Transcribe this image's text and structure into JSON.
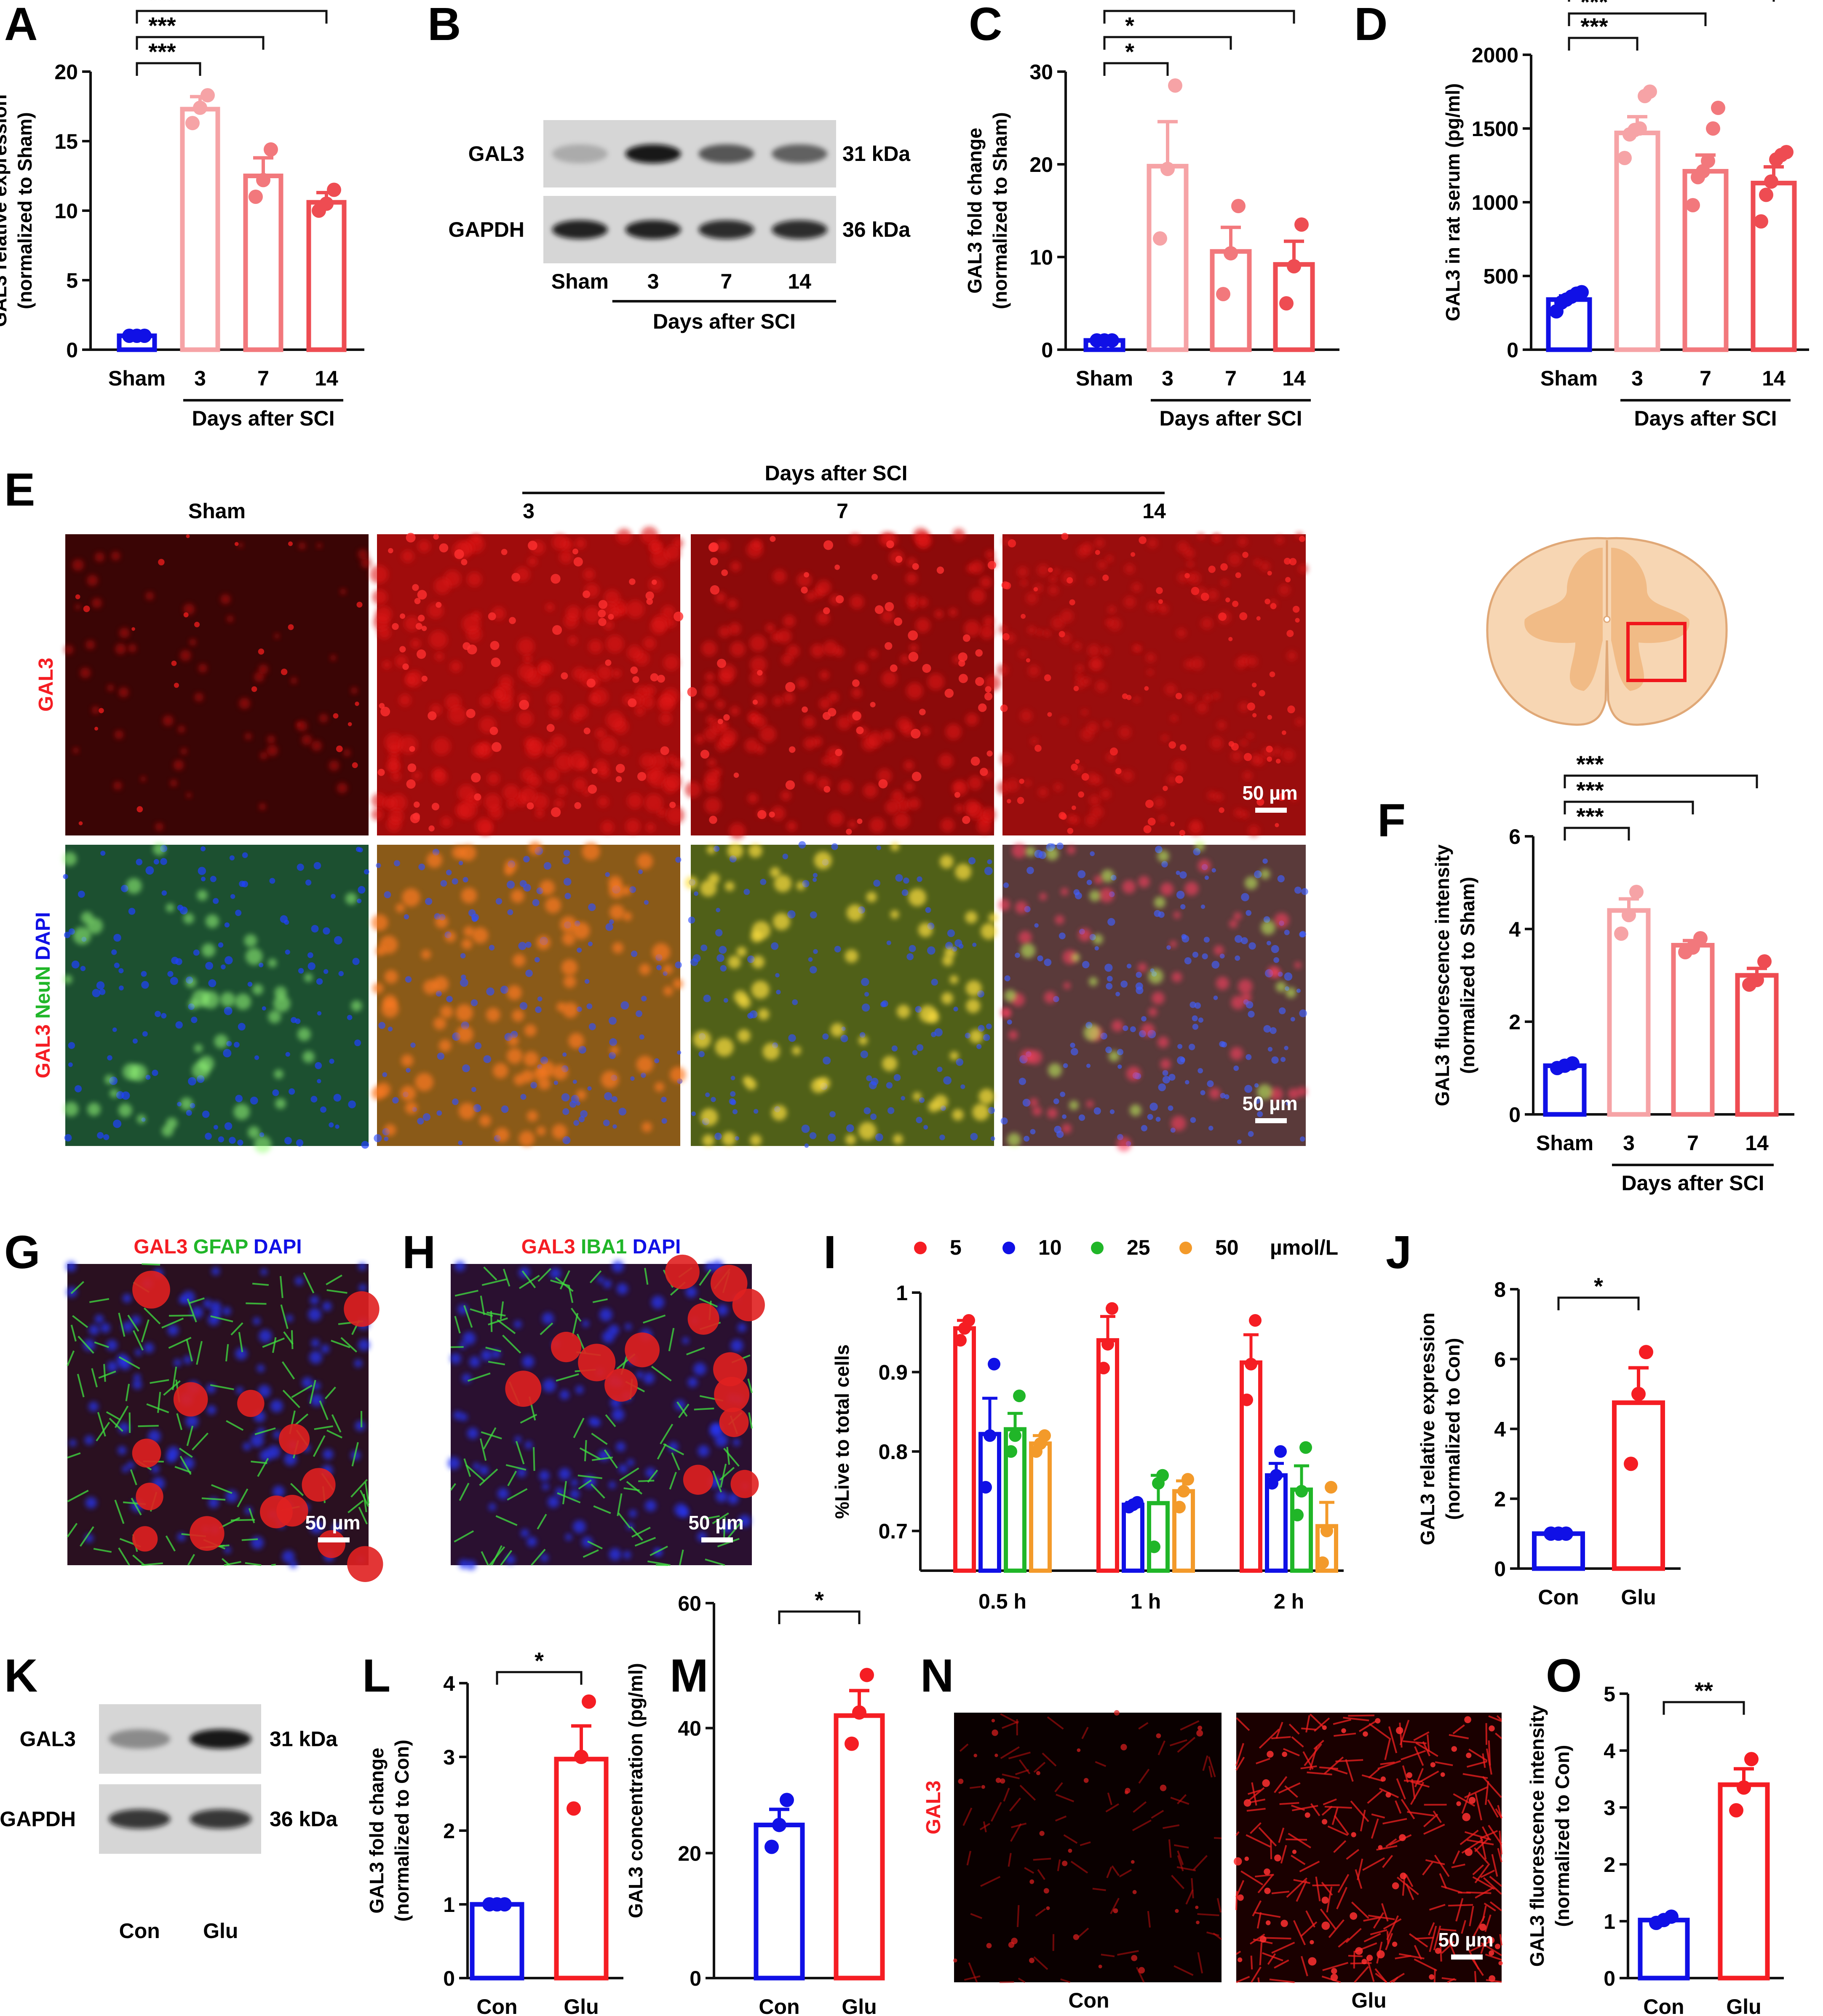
{
  "colors": {
    "blue": "#1010e6",
    "red": "#f51d23",
    "pink1": "#f6a3a6",
    "pink2": "#f2787c",
    "pink3": "#ee4c52",
    "green": "#20b628",
    "orange": "#f39a2a",
    "black": "#111111"
  },
  "panel_letters": {
    "A": "A",
    "B": "B",
    "C": "C",
    "D": "D",
    "E": "E",
    "F": "F",
    "G": "G",
    "H": "H",
    "I": "I",
    "J": "J",
    "K": "K",
    "L": "L",
    "M": "M",
    "N": "N",
    "O": "O"
  },
  "common": {
    "days_after_sci": "Days after SCI",
    "scale_bar": "50 µm"
  },
  "blots": {
    "B": {
      "rows": [
        "GAL3",
        "GAPDH"
      ],
      "sizes": [
        "31 kDa",
        "36 kDa"
      ],
      "lanes": [
        "Sham",
        "3",
        "7",
        "14"
      ],
      "group_label": "Days after SCI",
      "band_intensity": [
        [
          0.2,
          0.95,
          0.6,
          0.55
        ],
        [
          0.9,
          0.9,
          0.85,
          0.85
        ]
      ]
    },
    "K": {
      "rows": [
        "GAL3",
        "GAPDH"
      ],
      "sizes": [
        "31 kDa",
        "36 kDa"
      ],
      "lanes": [
        "Con",
        "Glu"
      ],
      "band_intensity": [
        [
          0.35,
          0.95
        ],
        [
          0.8,
          0.8
        ]
      ]
    }
  },
  "micrographs": {
    "E": {
      "columns": [
        "Sham",
        "3",
        "7",
        "14"
      ],
      "group_label": "Days after SCI",
      "row_labels": {
        "top": [
          {
            "t": "GAL3",
            "c": "red"
          }
        ],
        "bottom": [
          {
            "t": "GAL3",
            "c": "red"
          },
          {
            "t": " NeuN",
            "c": "green"
          },
          {
            "t": " DAPI",
            "c": "blue"
          }
        ]
      }
    },
    "G": {
      "title": [
        {
          "t": "GAL3",
          "c": "red"
        },
        {
          "t": " GFAP",
          "c": "green"
        },
        {
          "t": " DAPI",
          "c": "blue"
        }
      ]
    },
    "H": {
      "title": [
        {
          "t": "GAL3",
          "c": "red"
        },
        {
          "t": " IBA1",
          "c": "green"
        },
        {
          "t": " DAPI",
          "c": "blue"
        }
      ]
    },
    "N": {
      "row_label": "GAL3",
      "columns": [
        "Con",
        "Glu"
      ]
    }
  },
  "chart_data": [
    {
      "panel": "A",
      "type": "bar",
      "ylabel": [
        "GAL3 relative  expression",
        "(normalized to Sham)"
      ],
      "ylim": [
        0,
        20
      ],
      "yticks": [
        0,
        5,
        10,
        15,
        20
      ],
      "categories": [
        "Sham",
        "3",
        "7",
        "14"
      ],
      "group_label": "Days after SCI",
      "values": [
        1.0,
        17.3,
        12.5,
        10.6
      ],
      "sem": [
        0.05,
        0.9,
        1.3,
        0.7
      ],
      "points": [
        [
          1.0,
          1.0,
          1.0
        ],
        [
          16.3,
          17.4,
          18.3
        ],
        [
          11.0,
          12.2,
          14.4
        ],
        [
          10.0,
          10.5,
          11.5
        ]
      ],
      "colors": [
        "blue",
        "pink1",
        "pink2",
        "pink3"
      ],
      "significance": [
        {
          "from": 0,
          "to": 1,
          "label": "***"
        },
        {
          "from": 0,
          "to": 2,
          "label": "***"
        },
        {
          "from": 0,
          "to": 3,
          "label": "***"
        }
      ]
    },
    {
      "panel": "C",
      "type": "bar",
      "ylabel": [
        "GAL3 fold change",
        "(normalized to Sham)"
      ],
      "ylim": [
        0,
        30
      ],
      "yticks": [
        0,
        10,
        20,
        30
      ],
      "categories": [
        "Sham",
        "3",
        "7",
        "14"
      ],
      "group_label": "Days after SCI",
      "values": [
        1.0,
        19.8,
        10.6,
        9.2
      ],
      "sem": [
        0.05,
        4.8,
        2.6,
        2.5
      ],
      "points": [
        [
          1.0,
          1.0,
          1.0
        ],
        [
          12.0,
          19.5,
          28.5
        ],
        [
          6.0,
          10.4,
          15.5
        ],
        [
          5.0,
          9.0,
          13.5
        ]
      ],
      "colors": [
        "blue",
        "pink1",
        "pink2",
        "pink3"
      ],
      "significance": [
        {
          "from": 0,
          "to": 1,
          "label": "*"
        },
        {
          "from": 0,
          "to": 2,
          "label": "*"
        },
        {
          "from": 0,
          "to": 3,
          "label": "*"
        }
      ]
    },
    {
      "panel": "D",
      "type": "bar",
      "ylabel": [
        "GAL3 in rat serum (pg/ml)"
      ],
      "ylim": [
        0,
        2000
      ],
      "yticks": [
        0,
        500,
        1000,
        1500,
        2000
      ],
      "categories": [
        "Sham",
        "3",
        "7",
        "14"
      ],
      "group_label": "Days after SCI",
      "values": [
        340,
        1470,
        1210,
        1130
      ],
      "sem": [
        25,
        110,
        110,
        110
      ],
      "points": [
        [
          260,
          320,
          340,
          360,
          380,
          390
        ],
        [
          1300,
          1460,
          1490,
          1500,
          1720,
          1750
        ],
        [
          980,
          1170,
          1210,
          1280,
          1500,
          1640
        ],
        [
          870,
          1050,
          1140,
          1290,
          1320,
          1340
        ]
      ],
      "colors": [
        "blue",
        "pink1",
        "pink2",
        "pink3"
      ],
      "significance": [
        {
          "from": 0,
          "to": 1,
          "label": "***"
        },
        {
          "from": 0,
          "to": 2,
          "label": "***"
        },
        {
          "from": 0,
          "to": 3,
          "label": "***"
        }
      ]
    },
    {
      "panel": "F",
      "type": "bar",
      "ylabel": [
        "GAL3 fluorescence intensity",
        "(normalized to Sham)"
      ],
      "ylim": [
        0,
        6
      ],
      "yticks": [
        0,
        2,
        4,
        6
      ],
      "categories": [
        "Sham",
        "3",
        "7",
        "14"
      ],
      "group_label": "Days after SCI",
      "values": [
        1.05,
        4.4,
        3.65,
        3.0
      ],
      "sem": [
        0.04,
        0.25,
        0.1,
        0.15
      ],
      "points": [
        [
          1.0,
          1.05,
          1.1
        ],
        [
          3.9,
          4.3,
          4.8
        ],
        [
          3.5,
          3.6,
          3.8
        ],
        [
          2.8,
          2.9,
          3.3
        ]
      ],
      "colors": [
        "blue",
        "pink1",
        "pink2",
        "pink3"
      ],
      "significance": [
        {
          "from": 0,
          "to": 1,
          "label": "***"
        },
        {
          "from": 0,
          "to": 2,
          "label": "***"
        },
        {
          "from": 0,
          "to": 3,
          "label": "***"
        }
      ]
    },
    {
      "panel": "I",
      "type": "bar",
      "ylabel": [
        "%Live to total  cells"
      ],
      "ylim": [
        0.65,
        1.0
      ],
      "yticks": [
        0.7,
        0.8,
        0.9,
        1.0
      ],
      "categories": [
        "0.5 h",
        "1 h",
        "2 h"
      ],
      "legend": {
        "unit": "µmol/L",
        "placement": "top"
      },
      "series": [
        {
          "name": "5",
          "color": "red",
          "values": [
            0.955,
            0.94,
            0.912
          ],
          "sem": [
            0.01,
            0.03,
            0.035
          ],
          "points": [
            [
              0.94,
              0.955,
              0.965
            ],
            [
              0.905,
              0.935,
              0.98
            ],
            [
              0.865,
              0.91,
              0.965
            ]
          ]
        },
        {
          "name": "10",
          "color": "blue",
          "values": [
            0.822,
            0.733,
            0.77
          ],
          "sem": [
            0.045,
            0.003,
            0.015
          ],
          "points": [
            [
              0.755,
              0.82,
              0.91
            ],
            [
              0.73,
              0.733,
              0.736
            ],
            [
              0.76,
              0.77,
              0.8
            ]
          ]
        },
        {
          "name": "25",
          "color": "green",
          "values": [
            0.828,
            0.735,
            0.752
          ],
          "sem": [
            0.02,
            0.035,
            0.03
          ],
          "points": [
            [
              0.8,
              0.82,
              0.87
            ],
            [
              0.68,
              0.76,
              0.77
            ],
            [
              0.72,
              0.75,
              0.805
            ]
          ]
        },
        {
          "name": "50",
          "color": "orange",
          "values": [
            0.81,
            0.75,
            0.706
          ],
          "sem": [
            0.01,
            0.013,
            0.03
          ],
          "points": [
            [
              0.8,
              0.81,
              0.82
            ],
            [
              0.73,
              0.75,
              0.765
            ],
            [
              0.66,
              0.7,
              0.755
            ]
          ]
        }
      ]
    },
    {
      "panel": "J",
      "type": "bar",
      "ylabel": [
        "GAL3 relative  expression",
        "(normalized to Con)"
      ],
      "ylim": [
        0,
        8
      ],
      "yticks": [
        0,
        2,
        4,
        6,
        8
      ],
      "categories": [
        "Con",
        "Glu"
      ],
      "values": [
        1.0,
        4.75
      ],
      "sem": [
        0.03,
        1.0
      ],
      "points": [
        [
          1.0,
          1.0,
          1.0
        ],
        [
          3.0,
          5.0,
          6.2
        ]
      ],
      "colors": [
        "blue",
        "red"
      ],
      "significance": [
        {
          "from": 0,
          "to": 1,
          "label": "*"
        }
      ]
    },
    {
      "panel": "L",
      "type": "bar",
      "ylabel": [
        "GAL3 fold change",
        "(normalized to Con)"
      ],
      "ylim": [
        0,
        4
      ],
      "yticks": [
        0,
        1,
        2,
        3,
        4
      ],
      "categories": [
        "Con",
        "Glu"
      ],
      "values": [
        1.0,
        2.97
      ],
      "sem": [
        0.02,
        0.45
      ],
      "points": [
        [
          1.0,
          1.0,
          1.0
        ],
        [
          2.3,
          3.0,
          3.75
        ]
      ],
      "colors": [
        "blue",
        "red"
      ],
      "significance": [
        {
          "from": 0,
          "to": 1,
          "label": "*"
        }
      ]
    },
    {
      "panel": "M",
      "type": "bar",
      "ylabel": [
        "GAL3 concentration (pg/ml)"
      ],
      "ylim": [
        0,
        60
      ],
      "yticks": [
        0,
        20,
        40,
        60
      ],
      "categories": [
        "Con",
        "Glu"
      ],
      "values": [
        24.5,
        42.0
      ],
      "sem": [
        2.5,
        4.0
      ],
      "points": [
        [
          21.0,
          24.5,
          28.5
        ],
        [
          37.5,
          42.5,
          48.5
        ]
      ],
      "colors": [
        "blue",
        "red"
      ],
      "significance": [
        {
          "from": 0,
          "to": 1,
          "label": "*"
        }
      ]
    },
    {
      "panel": "O",
      "type": "bar",
      "ylabel": [
        "GAL3 fluorescence intensity",
        "(normalized to Con)"
      ],
      "ylim": [
        0,
        5
      ],
      "yticks": [
        0,
        1,
        2,
        3,
        4,
        5
      ],
      "categories": [
        "Con",
        "Glu"
      ],
      "values": [
        1.02,
        3.4
      ],
      "sem": [
        0.03,
        0.28
      ],
      "points": [
        [
          0.97,
          1.02,
          1.08
        ],
        [
          2.95,
          3.35,
          3.85
        ]
      ],
      "colors": [
        "blue",
        "red"
      ],
      "significance": [
        {
          "from": 0,
          "to": 1,
          "label": "**"
        }
      ]
    }
  ]
}
